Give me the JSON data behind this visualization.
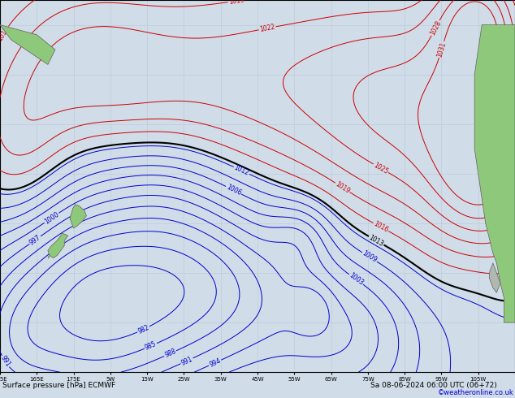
{
  "title_left": "Surface pressure [hPa] ECMWF",
  "title_right": "Sa 08-06-2024 06:00 UTC (06+72)",
  "copyright": "©weatheronline.co.uk",
  "bg_color": "#d0dce8",
  "land_color_green": "#8ec87a",
  "land_color_gray": "#b0b8b0",
  "grid_color": "#b8c8d8",
  "bottom_bg": "#d8e4ef",
  "extent_lon_min": 155,
  "extent_lon_max": 295,
  "extent_lat_min": -70,
  "extent_lat_max": 5
}
